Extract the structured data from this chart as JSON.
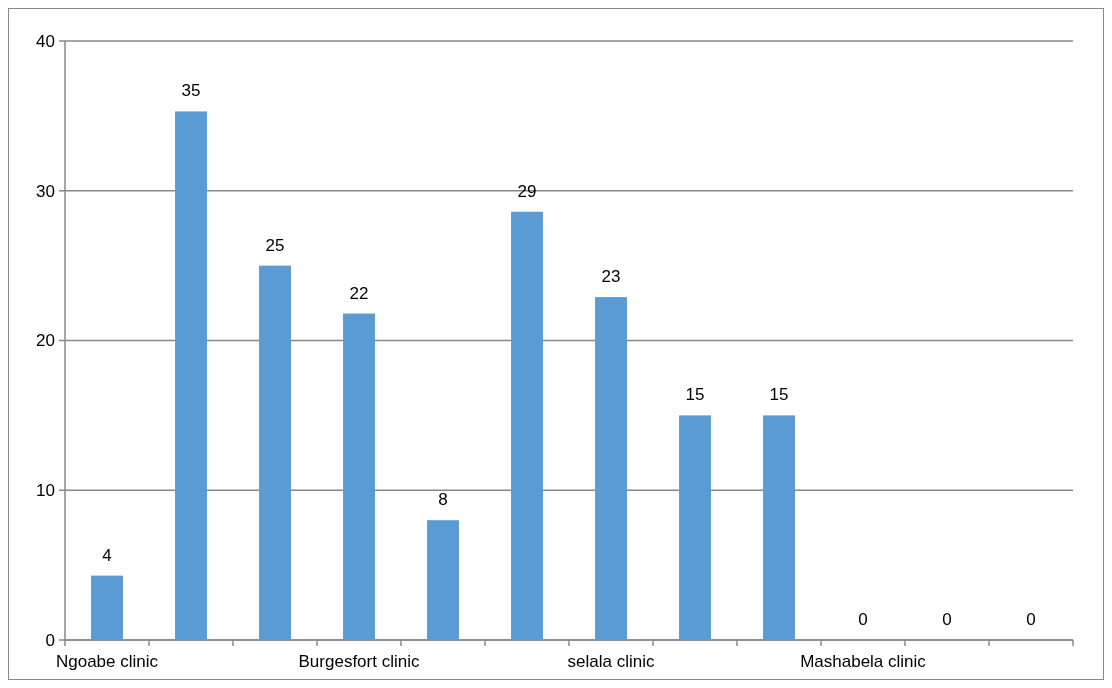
{
  "chart_data": {
    "type": "bar",
    "categories": [
      "Ngoabe clinic",
      null,
      null,
      "Burgesfort clinic",
      null,
      null,
      "selala clinic",
      null,
      null,
      "Mashabela clinic",
      null,
      null
    ],
    "values": [
      4.3,
      35.3,
      25,
      21.8,
      8,
      28.6,
      22.9,
      15,
      15,
      0,
      0,
      0
    ],
    "value_labels": [
      "4",
      "35",
      "25",
      "22",
      "8",
      "29",
      "23",
      "15",
      "15",
      "0",
      "0",
      "0"
    ],
    "color": "#5b9bd5",
    "ylim": [
      0,
      40
    ],
    "yticks": [
      0,
      10,
      20,
      30,
      40
    ],
    "grid": "y"
  }
}
